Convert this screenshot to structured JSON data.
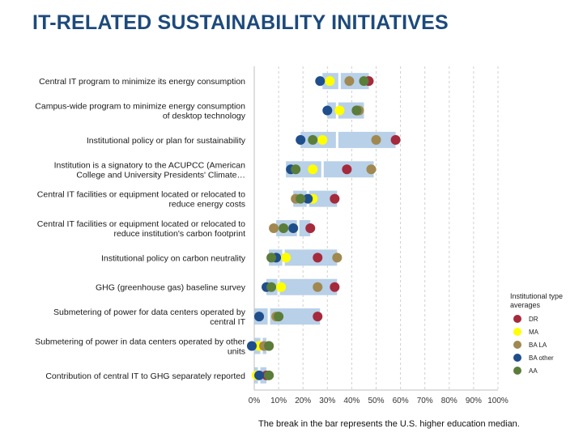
{
  "title": "IT-RELATED SUSTAINABILITY INITIATIVES",
  "footnote": "The break in the bar represents the U.S. higher education median.",
  "legend": {
    "title": "Institutional type averages",
    "placement": "right"
  },
  "colors": {
    "bar": "#b8d0e8",
    "axis": "#bfbfbf",
    "grid": "#d0d0d0",
    "label": "#1a1a1a"
  },
  "chart_data": {
    "type": "scatter",
    "orientation": "horizontal",
    "xlim": [
      0,
      100
    ],
    "x_ticks": [
      "0%",
      "10%",
      "20%",
      "30%",
      "40%",
      "50%",
      "60%",
      "70%",
      "80%",
      "90%",
      "100%"
    ],
    "categories": [
      [
        "Central IT program to minimize its energy consumption"
      ],
      [
        "Campus-wide program to minimize energy consumption",
        "of desktop technology"
      ],
      [
        "Institutional policy or plan for sustainability"
      ],
      [
        "Institution is a signatory to the ACUPCC (American",
        "College and University Presidents' Climate…"
      ],
      [
        "Central IT facilities or equipment located or relocated to",
        "reduce energy costs"
      ],
      [
        "Central IT facilities or equipment located or relocated to",
        "reduce institution's carbon footprint"
      ],
      [
        "Institutional policy on carbon neutrality"
      ],
      [
        "GHG (greenhouse gas) baseline survey"
      ],
      [
        "Submetering of power for data centers operated by",
        "central IT"
      ],
      [
        "Submetering of power in data centers operated by other",
        "units"
      ],
      [
        "Contribution of central IT to GHG separately reported"
      ]
    ],
    "bars": [
      {
        "start": 28,
        "end": 47,
        "median": 35
      },
      {
        "start": 30,
        "end": 45,
        "median": 34
      },
      {
        "start": 19,
        "end": 58,
        "median": 34
      },
      {
        "start": 13,
        "end": 49,
        "median": 28
      },
      {
        "start": 16,
        "end": 34,
        "median": 22
      },
      {
        "start": 9,
        "end": 23,
        "median": 18
      },
      {
        "start": 6,
        "end": 34,
        "median": 12
      },
      {
        "start": 5,
        "end": 34,
        "median": 10
      },
      {
        "start": 0,
        "end": 27,
        "median": 6
      },
      {
        "start": 0,
        "end": 5,
        "median": 3
      },
      {
        "start": 0,
        "end": 5,
        "median": 2
      }
    ],
    "series": [
      {
        "name": "DR",
        "color": "#a52a3c",
        "values": [
          47,
          42,
          58,
          38,
          33,
          23,
          26,
          33,
          26,
          6,
          5
        ]
      },
      {
        "name": "MA",
        "color": "#ffff00",
        "values": [
          31,
          35,
          28,
          24,
          24,
          16,
          13,
          11,
          9,
          2,
          1
        ]
      },
      {
        "name": "BA LA",
        "color": "#a08850",
        "values": [
          39,
          43,
          50,
          48,
          17,
          8,
          34,
          26,
          9,
          4,
          6
        ]
      },
      {
        "name": "BA other",
        "color": "#1f4e8c",
        "values": [
          27,
          30,
          19,
          15,
          22,
          16,
          9,
          5,
          2,
          -1,
          2
        ]
      },
      {
        "name": "AA",
        "color": "#5a7d3a",
        "values": [
          45,
          42,
          24,
          17,
          19,
          12,
          7,
          7,
          10,
          6,
          6
        ]
      }
    ]
  }
}
